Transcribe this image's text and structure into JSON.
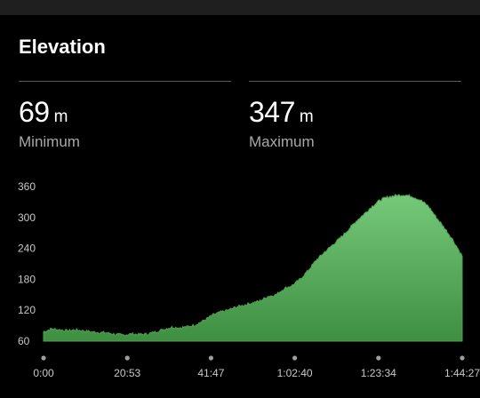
{
  "header": {
    "title": "Elevation"
  },
  "stats": {
    "min": {
      "value": "69",
      "unit": "m",
      "label": "Minimum"
    },
    "max": {
      "value": "347",
      "unit": "m",
      "label": "Maximum"
    }
  },
  "colors": {
    "background": "#000000",
    "fill_top": "#77c97a",
    "fill_bottom": "#3e8f41",
    "outline": "#4e9f50",
    "dot": "#9e9e9e"
  },
  "chart_data": {
    "type": "area",
    "title": "Elevation",
    "xlabel": "",
    "ylabel": "",
    "ylim": [
      60,
      360
    ],
    "yticks": [
      "360",
      "300",
      "240",
      "180",
      "120",
      "60"
    ],
    "xticks": [
      "0:00",
      "20:53",
      "41:47",
      "1:02:40",
      "1:23:34",
      "1:44:27"
    ],
    "xlim_minutes": [
      0,
      104.45
    ],
    "x_minutes": [
      0,
      2,
      4,
      6,
      8,
      10,
      12,
      14,
      16,
      18,
      20,
      22,
      24,
      26,
      28,
      30,
      32,
      34,
      36,
      38,
      40,
      42,
      44,
      46,
      48,
      50,
      52,
      54,
      56,
      58,
      60,
      62,
      64,
      66,
      68,
      70,
      72,
      74,
      76,
      78,
      80,
      82,
      84,
      86,
      88,
      90,
      92,
      94,
      96,
      98,
      100,
      102,
      104.45
    ],
    "y": [
      78,
      84,
      82,
      80,
      82,
      80,
      78,
      77,
      76,
      73,
      72,
      74,
      73,
      74,
      78,
      83,
      87,
      86,
      88,
      92,
      100,
      110,
      116,
      120,
      126,
      130,
      134,
      138,
      147,
      150,
      162,
      168,
      180,
      197,
      217,
      232,
      246,
      260,
      276,
      293,
      307,
      322,
      334,
      340,
      343,
      344,
      341,
      334,
      322,
      300,
      280,
      258,
      225
    ]
  }
}
